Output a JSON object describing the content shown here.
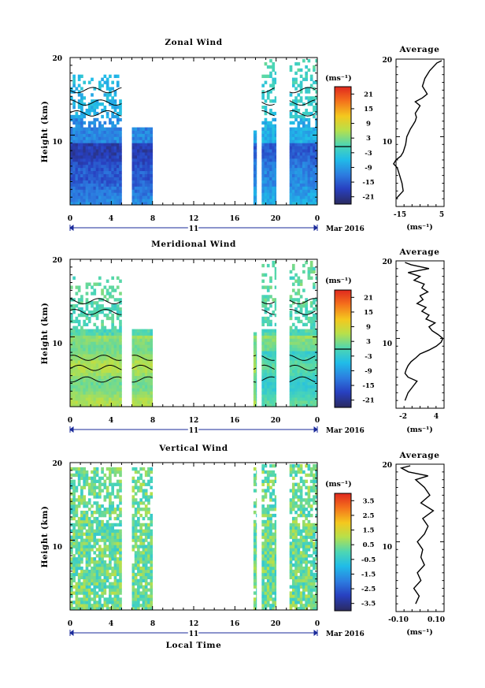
{
  "chart_data": [
    {
      "type": "heatmap",
      "title": "Zonal Wind",
      "ylabel": "Height (km)",
      "y_ticks": [
        "10",
        "20"
      ],
      "ylim": [
        1,
        20
      ],
      "x_ticks": [
        "0",
        "4",
        "8",
        "12",
        "16",
        "20",
        "0"
      ],
      "xlim": [
        0,
        24
      ],
      "date_day": "11",
      "date_month": "Mar 2016",
      "xlabel": "",
      "data_segments": [
        [
          0,
          5
        ],
        [
          6,
          8
        ],
        [
          17.8,
          18.1
        ],
        [
          18.6,
          20
        ],
        [
          21.3,
          24
        ]
      ],
      "colorbar": {
        "unit": "(ms⁻¹)",
        "ticks": [
          "21",
          "15",
          "9",
          "3",
          "-3",
          "-9",
          "-15",
          "-21"
        ],
        "range": [
          -24,
          24
        ]
      },
      "average": {
        "title": "Average",
        "xlabel": "(ms⁻¹)",
        "x_ticks": [
          "-15",
          "5"
        ],
        "xlim": [
          -15,
          5
        ],
        "y_ticks": [
          "10",
          "20"
        ],
        "profile": [
          [
            -15,
            2
          ],
          [
            -12,
            3
          ],
          [
            -12.5,
            4
          ],
          [
            -13.5,
            5
          ],
          [
            -14.5,
            6
          ],
          [
            -16,
            6.5
          ],
          [
            -15,
            7
          ],
          [
            -13,
            7.5
          ],
          [
            -12,
            8
          ],
          [
            -11,
            9
          ],
          [
            -10.5,
            10
          ],
          [
            -9,
            11
          ],
          [
            -8,
            11.5
          ],
          [
            -7,
            12
          ],
          [
            -6.5,
            12.5
          ],
          [
            -7,
            13
          ],
          [
            -6,
            13.5
          ],
          [
            -5,
            14
          ],
          [
            -7,
            14.5
          ],
          [
            -4,
            15
          ],
          [
            -2,
            15.5
          ],
          [
            -3,
            16
          ],
          [
            -4,
            16.5
          ],
          [
            -3.5,
            17
          ],
          [
            -3,
            17.5
          ],
          [
            -2,
            18
          ],
          [
            -1,
            18.5
          ],
          [
            0.5,
            19
          ],
          [
            2,
            19.5
          ],
          [
            4,
            19.8
          ]
        ]
      }
    },
    {
      "type": "heatmap",
      "title": "Meridional Wind",
      "ylabel": "Height (km)",
      "y_ticks": [
        "10",
        "20"
      ],
      "ylim": [
        1,
        20
      ],
      "x_ticks": [
        "0",
        "4",
        "8",
        "12",
        "16",
        "20",
        "0"
      ],
      "xlim": [
        0,
        24
      ],
      "date_day": "11",
      "date_month": "Mar 2016",
      "xlabel": "",
      "data_segments": [
        [
          0,
          5
        ],
        [
          6,
          8
        ],
        [
          17.8,
          18.1
        ],
        [
          18.6,
          20
        ],
        [
          21.3,
          24
        ]
      ],
      "colorbar": {
        "unit": "(ms⁻¹)",
        "ticks": [
          "21",
          "15",
          "9",
          "3",
          "-3",
          "-9",
          "-15",
          "-21"
        ],
        "range": [
          -24,
          24
        ]
      },
      "average": {
        "title": "Average",
        "xlabel": "(ms⁻¹)",
        "x_ticks": [
          "-2",
          "4"
        ],
        "xlim": [
          -3.5,
          4.5
        ],
        "y_ticks": [
          "10",
          "20"
        ],
        "profile": [
          [
            -2,
            2
          ],
          [
            -1.5,
            3
          ],
          [
            -0.5,
            4
          ],
          [
            0,
            4.5
          ],
          [
            -1.5,
            5
          ],
          [
            -2,
            5.5
          ],
          [
            -1.8,
            6
          ],
          [
            -1.5,
            6.5
          ],
          [
            -1,
            7
          ],
          [
            -0.2,
            7.5
          ],
          [
            0.5,
            8
          ],
          [
            2,
            8.5
          ],
          [
            3.2,
            9
          ],
          [
            4,
            9.5
          ],
          [
            4.3,
            10
          ],
          [
            3.5,
            10.5
          ],
          [
            2.5,
            11
          ],
          [
            2,
            11.5
          ],
          [
            3,
            12
          ],
          [
            1.5,
            12.5
          ],
          [
            2,
            13
          ],
          [
            0.8,
            13.5
          ],
          [
            1.5,
            14
          ],
          [
            0,
            14.5
          ],
          [
            1,
            15
          ],
          [
            0.5,
            15.5
          ],
          [
            1.8,
            16
          ],
          [
            0.8,
            16.5
          ],
          [
            1.2,
            17
          ],
          [
            -0.5,
            17.5
          ],
          [
            0.5,
            18
          ],
          [
            -1.5,
            18.5
          ],
          [
            2,
            19
          ],
          [
            -1,
            19.5
          ],
          [
            -2,
            19.8
          ]
        ]
      }
    },
    {
      "type": "heatmap",
      "title": "Vertical Wind",
      "ylabel": "Height (km)",
      "y_ticks": [
        "10",
        "20"
      ],
      "ylim": [
        1,
        20
      ],
      "x_ticks": [
        "0",
        "4",
        "8",
        "12",
        "16",
        "20",
        "0"
      ],
      "xlim": [
        0,
        24
      ],
      "date_day": "11",
      "date_month": "Mar 2016",
      "xlabel": "Local Time",
      "data_segments": [
        [
          0,
          5
        ],
        [
          6,
          8
        ],
        [
          17.8,
          18.1
        ],
        [
          18.6,
          20
        ],
        [
          21.3,
          24
        ]
      ],
      "colorbar": {
        "unit": "(ms⁻¹)",
        "ticks": [
          "3.5",
          "2.5",
          "1.5",
          "0.5",
          "-0.5",
          "-1.5",
          "-2.5",
          "-3.5"
        ],
        "range": [
          -4,
          4
        ]
      },
      "average": {
        "title": "Average",
        "xlabel": "(ms⁻¹)",
        "x_ticks": [
          "-0.10",
          "0.10"
        ],
        "xlim": [
          -0.13,
          0.14
        ],
        "y_ticks": [
          "10",
          "20"
        ],
        "profile": [
          [
            -0.02,
            2
          ],
          [
            0,
            3
          ],
          [
            -0.03,
            4
          ],
          [
            0.01,
            5
          ],
          [
            -0.01,
            6
          ],
          [
            0.03,
            7
          ],
          [
            0.01,
            8
          ],
          [
            0.02,
            9
          ],
          [
            -0.01,
            10
          ],
          [
            0.03,
            11
          ],
          [
            0.05,
            12
          ],
          [
            0.02,
            13
          ],
          [
            0.08,
            14
          ],
          [
            0.01,
            15
          ],
          [
            0.06,
            16
          ],
          [
            0.03,
            17
          ],
          [
            -0.02,
            18
          ],
          [
            0.05,
            18.5
          ],
          [
            -0.06,
            19
          ],
          [
            -0.1,
            19.5
          ],
          [
            -0.05,
            19.8
          ]
        ]
      }
    }
  ]
}
